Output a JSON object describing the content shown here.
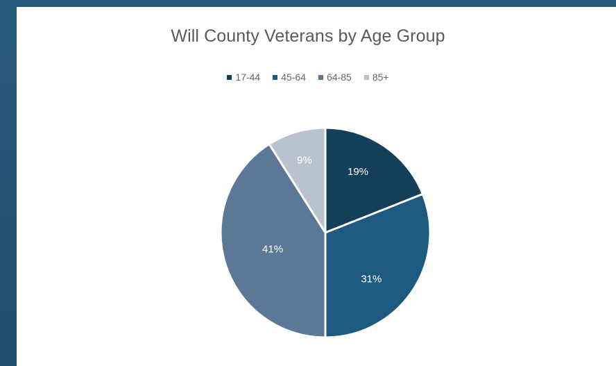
{
  "chart_data": {
    "type": "pie",
    "title": "Will County Veterans by Age Group",
    "legend_position": "top",
    "categories": [
      "17-44",
      "45-64",
      "64-85",
      "85+"
    ],
    "values": [
      19,
      31,
      41,
      9
    ],
    "labels": [
      "19%",
      "31%",
      "41%",
      "9%"
    ],
    "colors": [
      "#143f5b",
      "#1e5a80",
      "#5b7897",
      "#b9c3cf"
    ]
  }
}
